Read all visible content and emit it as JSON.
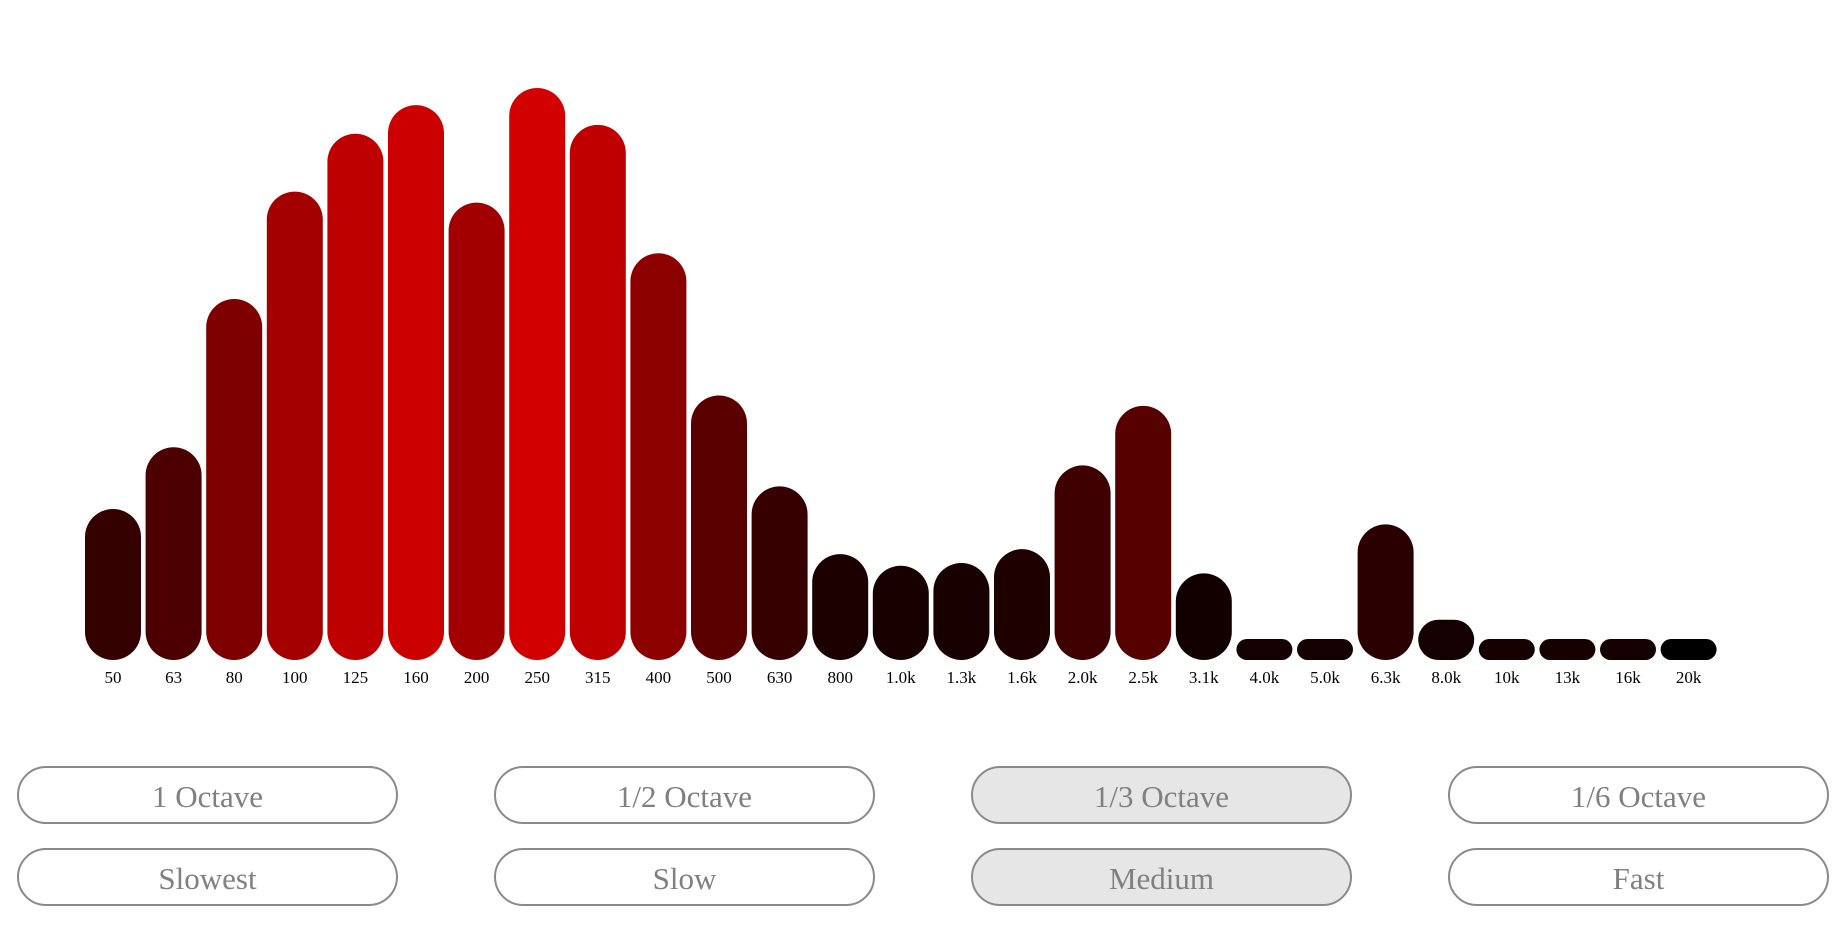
{
  "chart_data": {
    "type": "bar",
    "title": "",
    "xlabel": "",
    "ylabel": "",
    "ylim": [
      0,
      100
    ],
    "grid": false,
    "categories": [
      "50",
      "63",
      "80",
      "100",
      "125",
      "160",
      "200",
      "250",
      "315",
      "400",
      "500",
      "630",
      "800",
      "1.0k",
      "1.3k",
      "1.6k",
      "2.0k",
      "2.5k",
      "3.1k",
      "4.0k",
      "5.0k",
      "6.3k",
      "8.0k",
      "10k",
      "13k",
      "16k",
      "20k"
    ],
    "values": [
      23.6,
      34.8,
      61.7,
      81.2,
      91.7,
      96.9,
      79.2,
      100,
      93.3,
      70.0,
      44.2,
      27.7,
      15.4,
      13.3,
      13.8,
      16.3,
      31.5,
      42.3,
      11.9,
      0,
      0,
      20.8,
      3.5,
      0,
      0,
      0,
      0
    ],
    "colors": [
      "#340000",
      "#4c0000",
      "#7e0000",
      "#a50000",
      "#bf0000",
      "#cc0000",
      "#a20000",
      "#d20000",
      "#c00000",
      "#8c0000",
      "#5a0000",
      "#360000",
      "#1c0000",
      "#180000",
      "#190000",
      "#1f0000",
      "#3e0000",
      "#560000",
      "#120000",
      "#140000",
      "#140000",
      "#2a0000",
      "#140000",
      "#160000",
      "#160000",
      "#140000",
      "#000000"
    ]
  },
  "controls": {
    "resolution": [
      {
        "label": "1 Octave",
        "selected": false
      },
      {
        "label": "1/2 Octave",
        "selected": false
      },
      {
        "label": "1/3 Octave",
        "selected": true
      },
      {
        "label": "1/6 Octave",
        "selected": false
      }
    ],
    "speed": [
      {
        "label": "Slowest",
        "selected": false
      },
      {
        "label": "Slow",
        "selected": false
      },
      {
        "label": "Medium",
        "selected": true
      },
      {
        "label": "Fast",
        "selected": false
      }
    ]
  }
}
